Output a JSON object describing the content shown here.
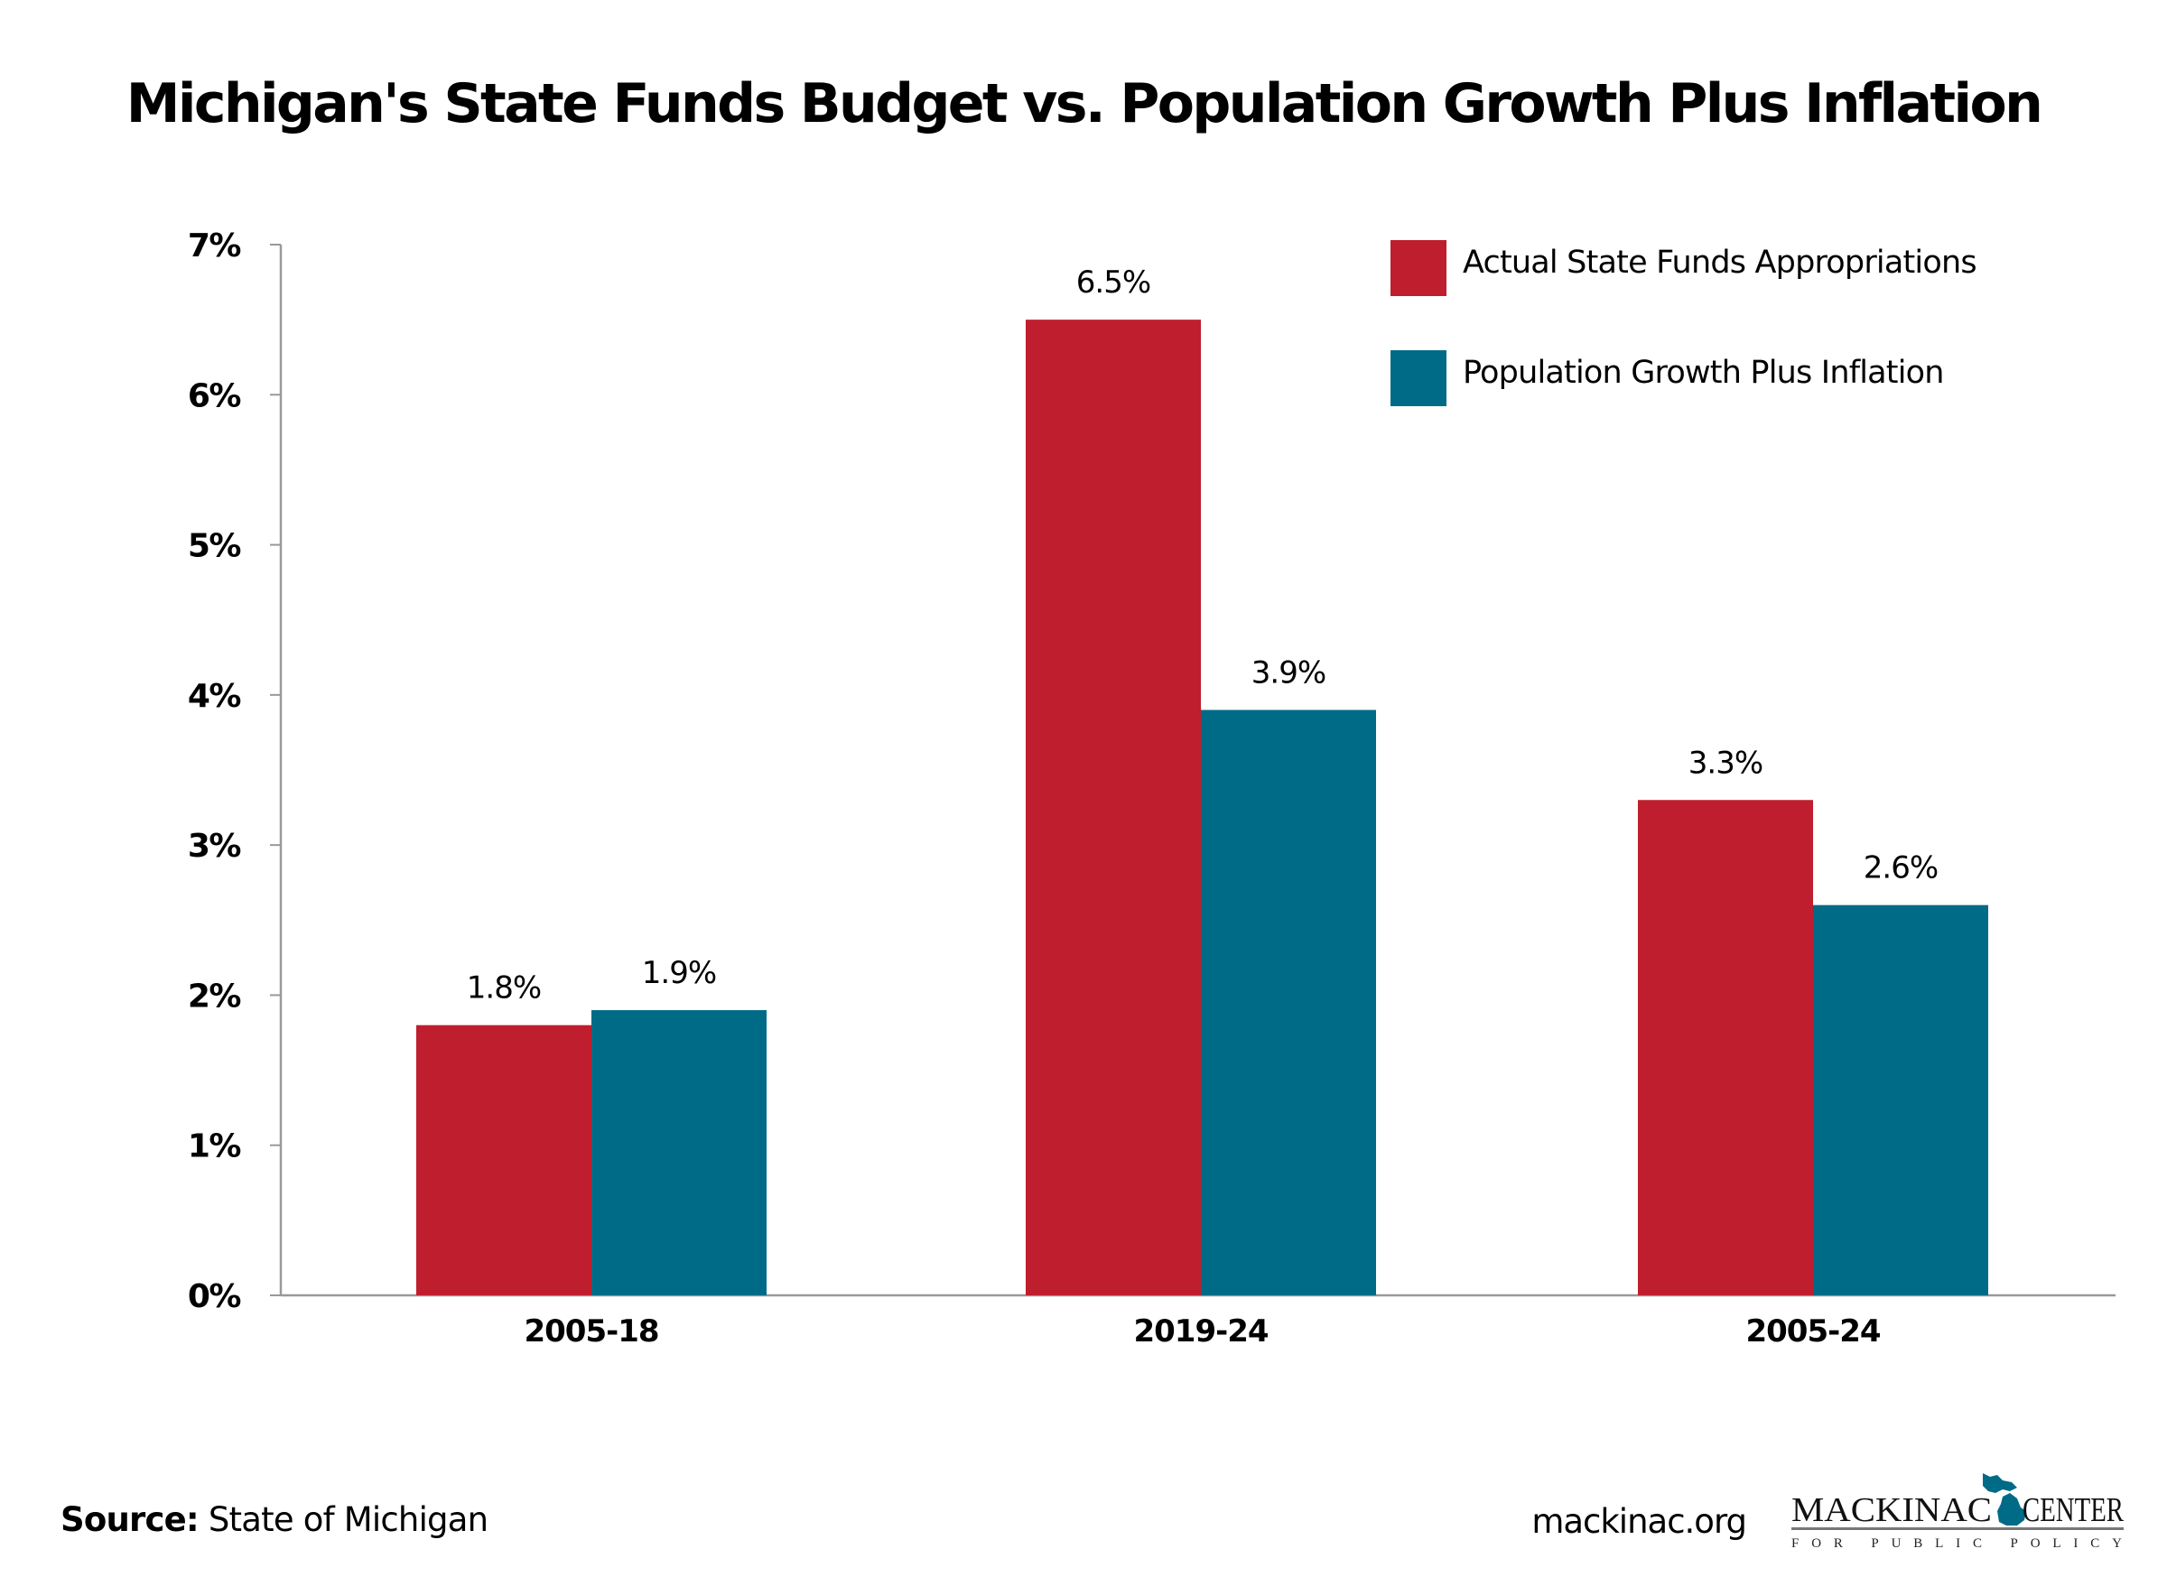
{
  "title": "Michigan's State Funds Budget vs. Population Growth Plus Inflation",
  "colors": {
    "actual": "#be1e2d",
    "population": "#006b87",
    "axis": "#999999",
    "text": "#000000"
  },
  "chart_data": {
    "type": "bar",
    "title": "Michigan's State Funds Budget vs. Population Growth Plus Inflation",
    "xlabel": "",
    "ylabel": "",
    "categories": [
      "2005-18",
      "2019-24",
      "2005-24"
    ],
    "series": [
      {
        "name": "Actual State Funds Appropriations",
        "color": "#be1e2d",
        "values": [
          1.8,
          6.5,
          3.3
        ],
        "labels": [
          "1.8%",
          "6.5%",
          "3.3%"
        ]
      },
      {
        "name": "Population Growth Plus Inflation",
        "color": "#006b87",
        "values": [
          1.9,
          3.9,
          2.6
        ],
        "labels": [
          "1.9%",
          "3.9%",
          "2.6%"
        ]
      }
    ],
    "ylim": [
      0,
      7
    ],
    "yticks": [
      0,
      1,
      2,
      3,
      4,
      5,
      6,
      7
    ],
    "ytick_labels": [
      "0%",
      "1%",
      "2%",
      "3%",
      "4%",
      "5%",
      "6%",
      "7%"
    ],
    "grid": false,
    "legend_position": "top-right"
  },
  "footer": {
    "source_label": "Source:",
    "source_text": " State of Michigan",
    "site": "mackinac.org",
    "logo": {
      "name_left": "MACKINAC",
      "name_right": "CENTER",
      "tagline": "FOR PUBLIC POLICY",
      "icon": "michigan-map-icon"
    }
  }
}
